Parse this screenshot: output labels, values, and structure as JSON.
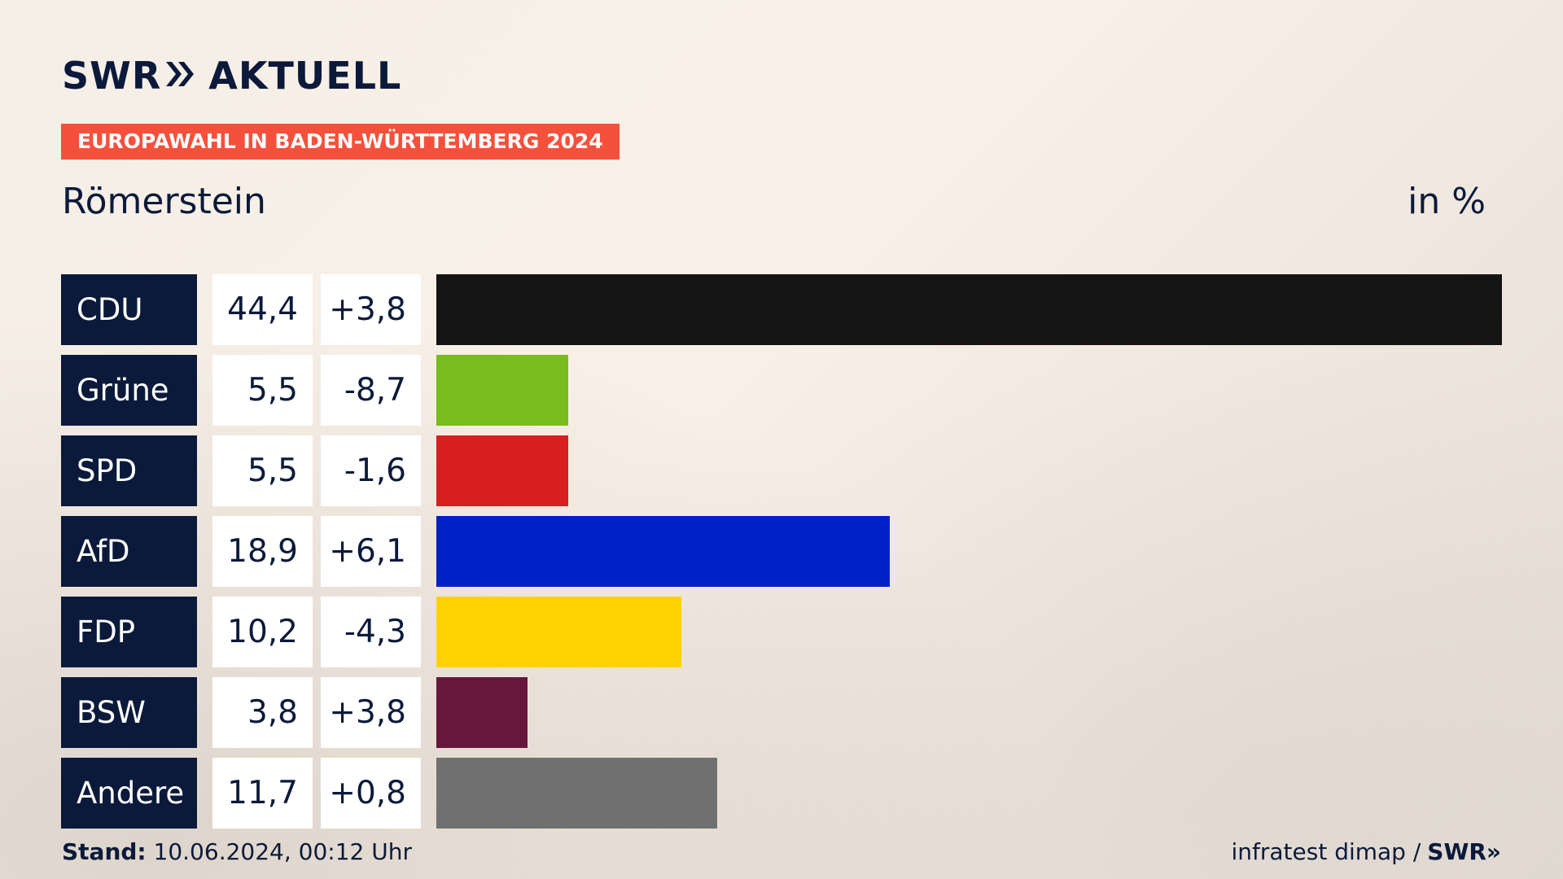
{
  "brand": {
    "logo_left": "SWR",
    "logo_chevrons": "»",
    "logo_right": "AKTUELL"
  },
  "header": {
    "badge": "EUROPAWAHL IN BADEN-WÜRTTEMBERG 2024",
    "place": "Römerstein",
    "unit": "in %"
  },
  "footer": {
    "stand_label": "Stand:",
    "stand_value": "10.06.2024, 00:12 Uhr",
    "source": "infratest dimap /",
    "source_logo": "SWR»"
  },
  "chart_data": {
    "type": "bar",
    "orientation": "horizontal",
    "categories": [
      "CDU",
      "Grüne",
      "SPD",
      "AfD",
      "FDP",
      "BSW",
      "Andere"
    ],
    "values": [
      44.4,
      5.5,
      5.5,
      18.9,
      10.2,
      3.8,
      11.7
    ],
    "value_labels": [
      "44,4",
      "5,5",
      "5,5",
      "18,9",
      "10,2",
      "3,8",
      "11,7"
    ],
    "change_labels": [
      "+3,8",
      "-8,7",
      "-1,6",
      "+6,1",
      "-4,3",
      "+3,8",
      "+0,8"
    ],
    "changes": [
      3.8,
      -8.7,
      -1.6,
      6.1,
      -4.3,
      3.8,
      0.8
    ],
    "colors": [
      "#141414",
      "#78bc1e",
      "#d81e1e",
      "#0020c8",
      "#ffd100",
      "#67163c",
      "#707070"
    ],
    "xlim": [
      0,
      44.4
    ],
    "grid": false
  }
}
